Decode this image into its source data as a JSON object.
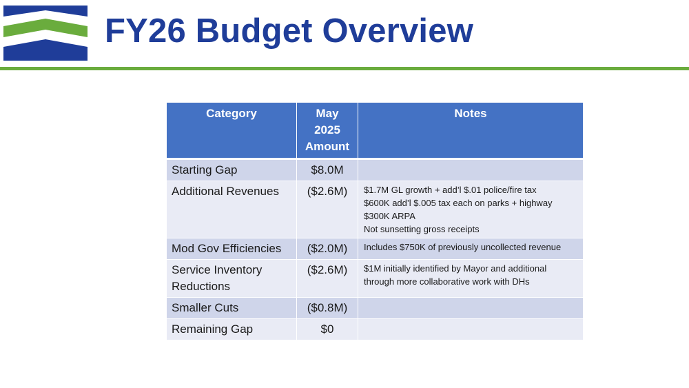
{
  "slide": {
    "title": "FY26 Budget Overview",
    "logo_icon": "wave-chevron-logo-icon"
  },
  "colors": {
    "title": "#1f3d99",
    "rule": "#6aac3d",
    "header_bg": "#4472c4",
    "row_odd": "#cfd5ea",
    "row_even": "#e9ebf5",
    "logo_blue": "#1f3d99",
    "logo_green": "#6aac3d"
  },
  "table": {
    "headers": {
      "category": "Category",
      "amount_lines": [
        "May",
        "2025",
        "Amount"
      ],
      "notes": "Notes"
    },
    "rows": [
      {
        "category": "Starting Gap",
        "amount": "$8.0M",
        "notes": []
      },
      {
        "category": "Additional Revenues",
        "amount": "($2.6M)",
        "notes": [
          "$1.7M GL growth + add’l $.01 police/fire tax",
          "$600K add’l $.005 tax each on parks + highway",
          "$300K ARPA",
          "Not sunsetting gross receipts"
        ]
      },
      {
        "category": "Mod Gov Efficiencies",
        "amount": "($2.0M)",
        "notes": [
          "Includes $750K of previously uncollected revenue"
        ]
      },
      {
        "category": "Service Inventory Reductions",
        "amount": "($2.6M)",
        "notes": [
          "$1M initially identified by Mayor and additional through more collaborative work with DHs"
        ]
      },
      {
        "category": "Smaller Cuts",
        "amount": "($0.8M)",
        "notes": []
      },
      {
        "category": "Remaining Gap",
        "amount": "$0",
        "notes": []
      }
    ]
  }
}
